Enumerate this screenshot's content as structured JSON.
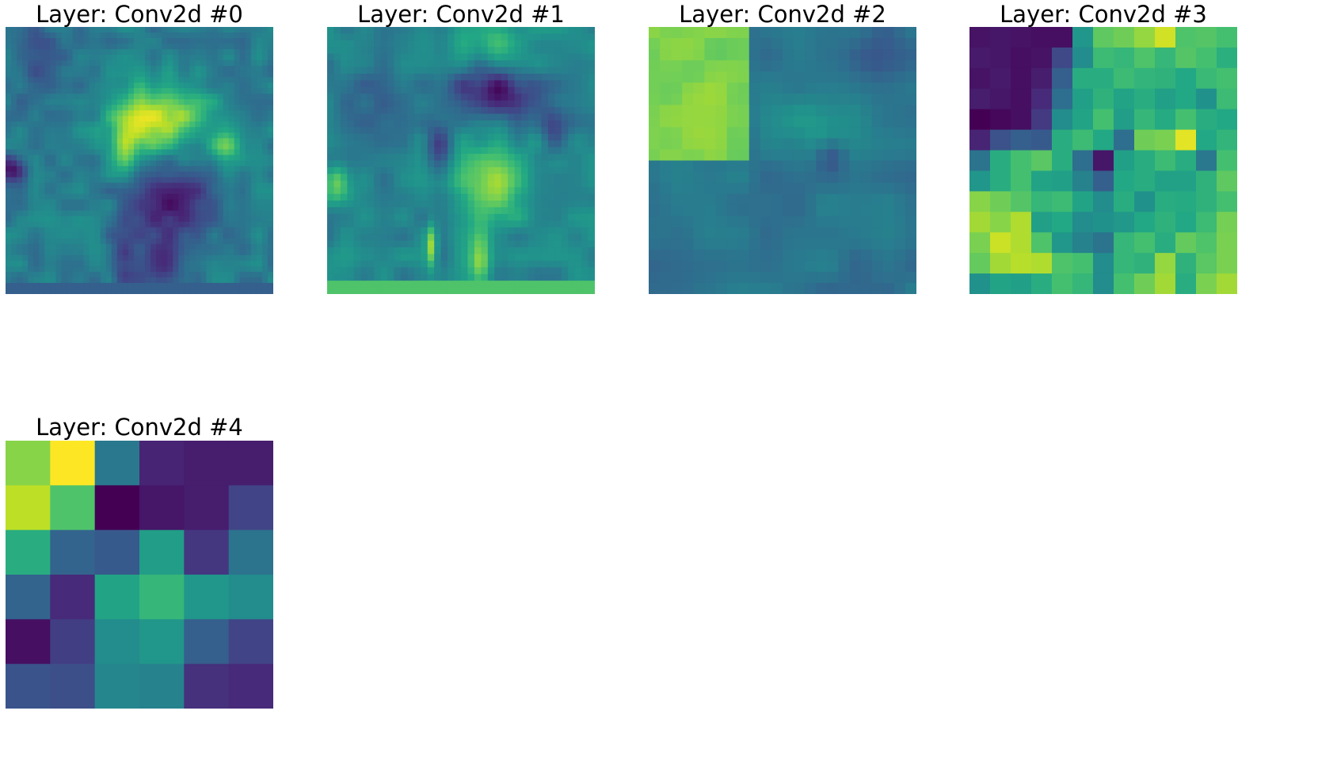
{
  "colormap": "viridis",
  "viridis_stops": [
    "#440154",
    "#482475",
    "#414487",
    "#355f8d",
    "#2a788e",
    "#21918c",
    "#22a884",
    "#44bf70",
    "#7ad151",
    "#bddf26",
    "#fde725"
  ],
  "chart_data": [
    {
      "type": "heatmap",
      "title": "Layer: Conv2d #0",
      "grid": false,
      "axes": "off",
      "resolution": [
        48,
        48
      ]
    },
    {
      "type": "heatmap",
      "title": "Layer: Conv2d #1",
      "grid": false,
      "axes": "off",
      "resolution": [
        40,
        40
      ]
    },
    {
      "type": "heatmap",
      "title": "Layer: Conv2d #2",
      "grid": false,
      "axes": "off",
      "resolution": [
        24,
        24
      ]
    },
    {
      "type": "heatmap",
      "title": "Layer: Conv2d #3",
      "grid": false,
      "axes": "off",
      "resolution": [
        13,
        13
      ],
      "values": [
        [
          0.05,
          0.06,
          0.05,
          0.04,
          0.04,
          0.52,
          0.75,
          0.78,
          0.84,
          0.93,
          0.72,
          0.73,
          0.7
        ],
        [
          0.07,
          0.06,
          0.04,
          0.05,
          0.22,
          0.48,
          0.68,
          0.66,
          0.72,
          0.66,
          0.73,
          0.7,
          0.63
        ],
        [
          0.05,
          0.07,
          0.04,
          0.08,
          0.3,
          0.62,
          0.62,
          0.68,
          0.65,
          0.64,
          0.6,
          0.67,
          0.7
        ],
        [
          0.08,
          0.06,
          0.04,
          0.12,
          0.36,
          0.56,
          0.64,
          0.58,
          0.62,
          0.56,
          0.6,
          0.5,
          0.68
        ],
        [
          0.0,
          0.02,
          0.04,
          0.17,
          0.48,
          0.58,
          0.7,
          0.55,
          0.66,
          0.61,
          0.7,
          0.62,
          0.6
        ],
        [
          0.1,
          0.25,
          0.3,
          0.28,
          0.62,
          0.68,
          0.6,
          0.36,
          0.78,
          0.8,
          0.96,
          0.6,
          0.65
        ],
        [
          0.38,
          0.62,
          0.7,
          0.74,
          0.62,
          0.36,
          0.06,
          0.56,
          0.62,
          0.68,
          0.62,
          0.4,
          0.7
        ],
        [
          0.52,
          0.62,
          0.7,
          0.58,
          0.56,
          0.44,
          0.3,
          0.6,
          0.62,
          0.57,
          0.57,
          0.64,
          0.75
        ],
        [
          0.82,
          0.78,
          0.73,
          0.66,
          0.68,
          0.58,
          0.48,
          0.62,
          0.5,
          0.62,
          0.61,
          0.64,
          0.7
        ],
        [
          0.86,
          0.82,
          0.88,
          0.56,
          0.6,
          0.48,
          0.5,
          0.53,
          0.6,
          0.64,
          0.6,
          0.68,
          0.79
        ],
        [
          0.8,
          0.92,
          0.88,
          0.72,
          0.52,
          0.44,
          0.38,
          0.66,
          0.7,
          0.62,
          0.76,
          0.72,
          0.8
        ],
        [
          0.76,
          0.86,
          0.89,
          0.88,
          0.72,
          0.7,
          0.48,
          0.66,
          0.64,
          0.84,
          0.64,
          0.74,
          0.8
        ],
        [
          0.5,
          0.58,
          0.56,
          0.62,
          0.7,
          0.66,
          0.48,
          0.7,
          0.78,
          0.86,
          0.62,
          0.8,
          0.86
        ]
      ]
    },
    {
      "type": "heatmap",
      "title": "Layer: Conv2d #4",
      "grid": false,
      "axes": "off",
      "resolution": [
        6,
        6
      ],
      "values": [
        [
          0.82,
          1.0,
          0.4,
          0.1,
          0.08,
          0.08
        ],
        [
          0.9,
          0.72,
          0.0,
          0.06,
          0.08,
          0.2
        ],
        [
          0.62,
          0.32,
          0.28,
          0.55,
          0.16,
          0.38
        ],
        [
          0.32,
          0.12,
          0.58,
          0.66,
          0.52,
          0.48
        ],
        [
          0.04,
          0.18,
          0.48,
          0.52,
          0.3,
          0.2
        ],
        [
          0.26,
          0.24,
          0.46,
          0.44,
          0.14,
          0.12
        ]
      ]
    }
  ]
}
